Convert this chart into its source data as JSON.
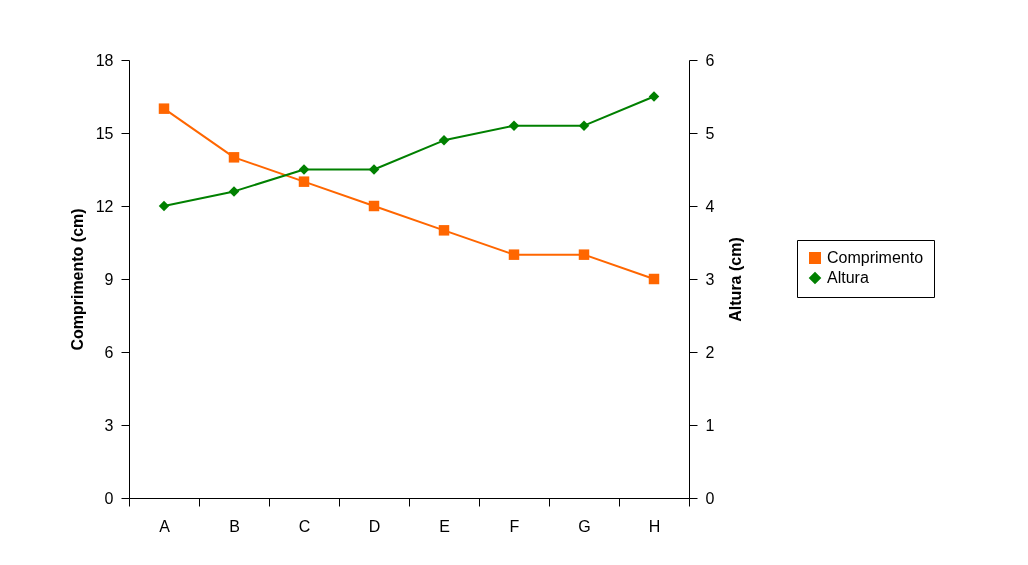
{
  "chart_data": {
    "type": "line",
    "categories": [
      "A",
      "B",
      "C",
      "D",
      "E",
      "F",
      "G",
      "H"
    ],
    "ylabel": "Comprimento (cm)",
    "y2label": "Altura (cm)",
    "ylim": [
      0,
      18
    ],
    "yticks": [
      0,
      3,
      6,
      9,
      12,
      15,
      18
    ],
    "y2lim": [
      0,
      6
    ],
    "y2ticks": [
      0,
      1,
      2,
      3,
      4,
      5,
      6
    ],
    "grid": false,
    "legend": "right",
    "line_style": "solid",
    "series": [
      {
        "name": "Comprimento",
        "color": "#ff6600",
        "marker": "square",
        "values": [
          16,
          14,
          13,
          12,
          11,
          10,
          10,
          9
        ]
      },
      {
        "name": "Altura",
        "color": "#008000",
        "marker": "diamond",
        "axis": "y2",
        "values": [
          4,
          4.2,
          4.5,
          4.5,
          4.9,
          5.1,
          5.1,
          5.5
        ]
      }
    ]
  }
}
